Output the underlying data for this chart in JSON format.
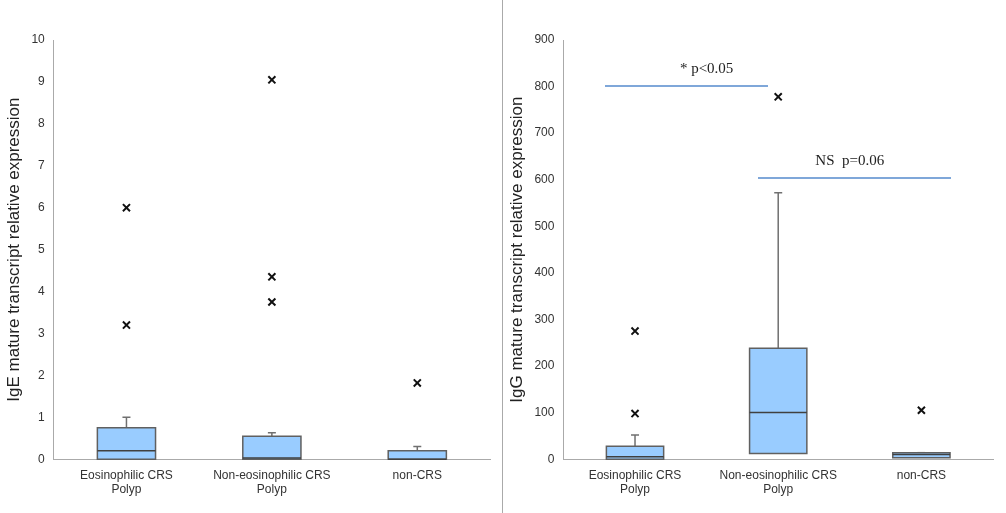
{
  "chart_data": [
    {
      "type": "box",
      "ylabel": "IgE mature transcript relative expression",
      "categories": [
        "Eosinophilic CRS Polyp",
        "Non-eosinophilic CRS Polyp",
        "non-CRS"
      ],
      "color": "#99ccff",
      "marker": "cross",
      "grid": false,
      "ylim": [
        0,
        10
      ],
      "yticks": [
        0,
        1,
        2,
        3,
        4,
        5,
        6,
        7,
        8,
        9,
        10
      ],
      "boxes": [
        {
          "low": 0,
          "q1": 0,
          "median": 0.2,
          "q3": 0.75,
          "high": 1.0,
          "outliers": [
            6.0,
            3.2
          ]
        },
        {
          "low": 0,
          "q1": 0,
          "median": 0.03,
          "q3": 0.55,
          "high": 0.63,
          "outliers": [
            9.05,
            4.35,
            3.75
          ]
        },
        {
          "low": 0,
          "q1": 0,
          "median": 0,
          "q3": 0.2,
          "high": 0.3,
          "outliers": [
            1.82
          ]
        }
      ]
    },
    {
      "type": "box",
      "ylabel": "IgG mature transcript relative expression",
      "categories": [
        "Eosinophilic CRS Polyp",
        "Non-eosinophilic CRS Polyp",
        "non-CRS"
      ],
      "color": "#99ccff",
      "marker": "cross",
      "grid": false,
      "ylim": [
        0,
        900
      ],
      "yticks": [
        0,
        100,
        200,
        300,
        400,
        500,
        600,
        700,
        800,
        900
      ],
      "boxes": [
        {
          "low": 0,
          "q1": 0,
          "median": 5,
          "q3": 28,
          "high": 52,
          "outliers": [
            275,
            98
          ]
        },
        {
          "low": 12,
          "q1": 12,
          "median": 100,
          "q3": 238,
          "high": 572,
          "outliers": [
            778
          ]
        },
        {
          "low": 3,
          "q1": 3,
          "median": 10,
          "q3": 14,
          "high": 14,
          "outliers": [
            105
          ]
        }
      ],
      "annotations": [
        "* p<0.05",
        "NS  p=0.06"
      ]
    }
  ]
}
